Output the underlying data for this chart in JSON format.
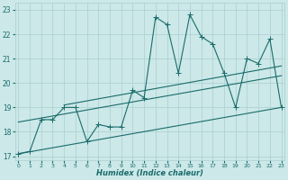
{
  "xlabel": "Humidex (Indice chaleur)",
  "x_values": [
    0,
    1,
    2,
    3,
    4,
    5,
    6,
    7,
    8,
    9,
    10,
    11,
    12,
    13,
    14,
    15,
    16,
    17,
    18,
    19,
    20,
    21,
    22,
    23
  ],
  "main_y": [
    17.1,
    17.2,
    18.5,
    18.5,
    19.0,
    19.0,
    17.6,
    18.3,
    18.2,
    18.2,
    19.7,
    19.4,
    22.7,
    22.4,
    20.4,
    22.8,
    21.9,
    21.6,
    20.4,
    19.0,
    21.0,
    20.8,
    21.8,
    19.0
  ],
  "trend1_x": [
    0,
    23
  ],
  "trend1_y": [
    17.1,
    19.0
  ],
  "trend2_x": [
    0,
    23
  ],
  "trend2_y": [
    18.4,
    20.3
  ],
  "trend3_x": [
    4,
    23
  ],
  "trend3_y": [
    19.1,
    20.7
  ],
  "xlim": [
    -0.3,
    23.3
  ],
  "ylim": [
    16.85,
    23.3
  ],
  "yticks": [
    17,
    18,
    19,
    20,
    21,
    22,
    23
  ],
  "bg_color": "#cce8e8",
  "grid_color": "#aacfcf",
  "line_color": "#1a6b6b",
  "marker": "+",
  "marker_size": 4,
  "lw": 0.8
}
